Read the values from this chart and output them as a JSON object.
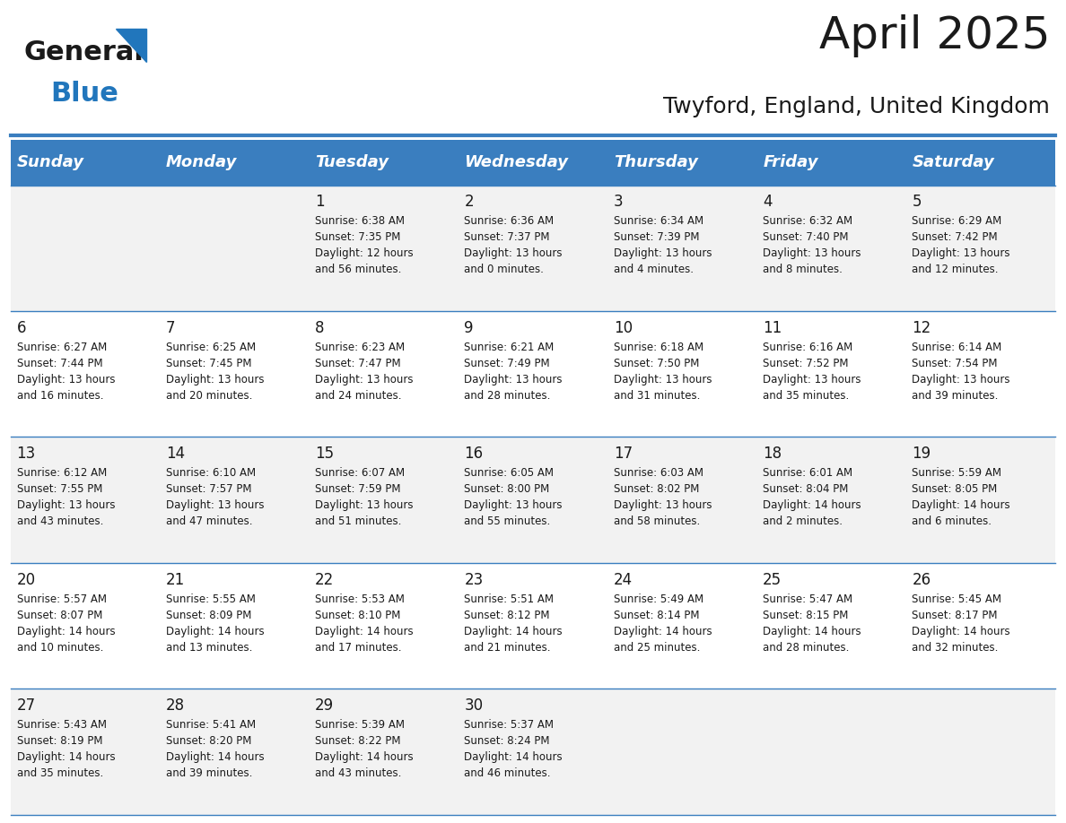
{
  "title": "April 2025",
  "subtitle": "Twyford, England, United Kingdom",
  "header_bg": "#3a7ebf",
  "header_text_color": "#ffffff",
  "cell_bg_even": "#f2f2f2",
  "cell_bg_odd": "#ffffff",
  "day_names": [
    "Sunday",
    "Monday",
    "Tuesday",
    "Wednesday",
    "Thursday",
    "Friday",
    "Saturday"
  ],
  "weeks": [
    [
      {
        "day": "",
        "info": ""
      },
      {
        "day": "",
        "info": ""
      },
      {
        "day": "1",
        "info": "Sunrise: 6:38 AM\nSunset: 7:35 PM\nDaylight: 12 hours\nand 56 minutes."
      },
      {
        "day": "2",
        "info": "Sunrise: 6:36 AM\nSunset: 7:37 PM\nDaylight: 13 hours\nand 0 minutes."
      },
      {
        "day": "3",
        "info": "Sunrise: 6:34 AM\nSunset: 7:39 PM\nDaylight: 13 hours\nand 4 minutes."
      },
      {
        "day": "4",
        "info": "Sunrise: 6:32 AM\nSunset: 7:40 PM\nDaylight: 13 hours\nand 8 minutes."
      },
      {
        "day": "5",
        "info": "Sunrise: 6:29 AM\nSunset: 7:42 PM\nDaylight: 13 hours\nand 12 minutes."
      }
    ],
    [
      {
        "day": "6",
        "info": "Sunrise: 6:27 AM\nSunset: 7:44 PM\nDaylight: 13 hours\nand 16 minutes."
      },
      {
        "day": "7",
        "info": "Sunrise: 6:25 AM\nSunset: 7:45 PM\nDaylight: 13 hours\nand 20 minutes."
      },
      {
        "day": "8",
        "info": "Sunrise: 6:23 AM\nSunset: 7:47 PM\nDaylight: 13 hours\nand 24 minutes."
      },
      {
        "day": "9",
        "info": "Sunrise: 6:21 AM\nSunset: 7:49 PM\nDaylight: 13 hours\nand 28 minutes."
      },
      {
        "day": "10",
        "info": "Sunrise: 6:18 AM\nSunset: 7:50 PM\nDaylight: 13 hours\nand 31 minutes."
      },
      {
        "day": "11",
        "info": "Sunrise: 6:16 AM\nSunset: 7:52 PM\nDaylight: 13 hours\nand 35 minutes."
      },
      {
        "day": "12",
        "info": "Sunrise: 6:14 AM\nSunset: 7:54 PM\nDaylight: 13 hours\nand 39 minutes."
      }
    ],
    [
      {
        "day": "13",
        "info": "Sunrise: 6:12 AM\nSunset: 7:55 PM\nDaylight: 13 hours\nand 43 minutes."
      },
      {
        "day": "14",
        "info": "Sunrise: 6:10 AM\nSunset: 7:57 PM\nDaylight: 13 hours\nand 47 minutes."
      },
      {
        "day": "15",
        "info": "Sunrise: 6:07 AM\nSunset: 7:59 PM\nDaylight: 13 hours\nand 51 minutes."
      },
      {
        "day": "16",
        "info": "Sunrise: 6:05 AM\nSunset: 8:00 PM\nDaylight: 13 hours\nand 55 minutes."
      },
      {
        "day": "17",
        "info": "Sunrise: 6:03 AM\nSunset: 8:02 PM\nDaylight: 13 hours\nand 58 minutes."
      },
      {
        "day": "18",
        "info": "Sunrise: 6:01 AM\nSunset: 8:04 PM\nDaylight: 14 hours\nand 2 minutes."
      },
      {
        "day": "19",
        "info": "Sunrise: 5:59 AM\nSunset: 8:05 PM\nDaylight: 14 hours\nand 6 minutes."
      }
    ],
    [
      {
        "day": "20",
        "info": "Sunrise: 5:57 AM\nSunset: 8:07 PM\nDaylight: 14 hours\nand 10 minutes."
      },
      {
        "day": "21",
        "info": "Sunrise: 5:55 AM\nSunset: 8:09 PM\nDaylight: 14 hours\nand 13 minutes."
      },
      {
        "day": "22",
        "info": "Sunrise: 5:53 AM\nSunset: 8:10 PM\nDaylight: 14 hours\nand 17 minutes."
      },
      {
        "day": "23",
        "info": "Sunrise: 5:51 AM\nSunset: 8:12 PM\nDaylight: 14 hours\nand 21 minutes."
      },
      {
        "day": "24",
        "info": "Sunrise: 5:49 AM\nSunset: 8:14 PM\nDaylight: 14 hours\nand 25 minutes."
      },
      {
        "day": "25",
        "info": "Sunrise: 5:47 AM\nSunset: 8:15 PM\nDaylight: 14 hours\nand 28 minutes."
      },
      {
        "day": "26",
        "info": "Sunrise: 5:45 AM\nSunset: 8:17 PM\nDaylight: 14 hours\nand 32 minutes."
      }
    ],
    [
      {
        "day": "27",
        "info": "Sunrise: 5:43 AM\nSunset: 8:19 PM\nDaylight: 14 hours\nand 35 minutes."
      },
      {
        "day": "28",
        "info": "Sunrise: 5:41 AM\nSunset: 8:20 PM\nDaylight: 14 hours\nand 39 minutes."
      },
      {
        "day": "29",
        "info": "Sunrise: 5:39 AM\nSunset: 8:22 PM\nDaylight: 14 hours\nand 43 minutes."
      },
      {
        "day": "30",
        "info": "Sunrise: 5:37 AM\nSunset: 8:24 PM\nDaylight: 14 hours\nand 46 minutes."
      },
      {
        "day": "",
        "info": ""
      },
      {
        "day": "",
        "info": ""
      },
      {
        "day": "",
        "info": ""
      }
    ]
  ],
  "logo_text_general": "General",
  "logo_text_blue": "Blue",
  "logo_triangle_color": "#2176bc",
  "title_fontsize": 36,
  "subtitle_fontsize": 18,
  "header_fontsize": 13,
  "day_num_fontsize": 12,
  "info_fontsize": 8.5
}
